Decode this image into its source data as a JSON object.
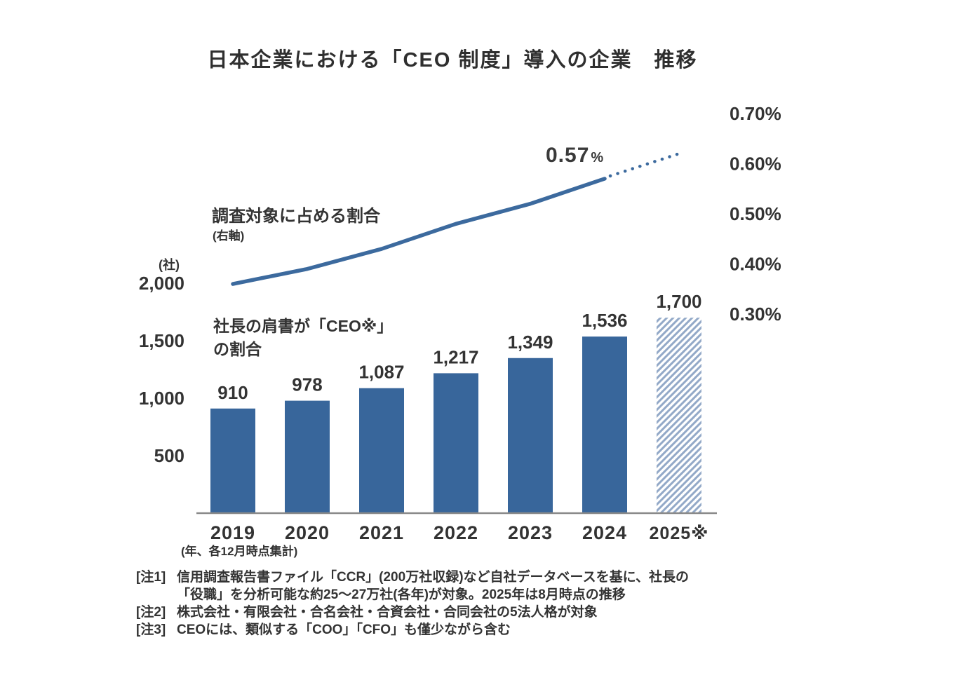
{
  "title": "日本企業における「CEO 制度」導入の企業　推移",
  "colors": {
    "bar": "#38669B",
    "line": "#3C6A9E",
    "hatch_stripe": "#93A9C8",
    "axis": "#8a8a8a",
    "text": "#333333"
  },
  "left_axis": {
    "unit_label": "(社)",
    "ticks": [
      "2,000",
      "1,500",
      "1,000",
      "500"
    ],
    "tick_values": [
      2000,
      1500,
      1000,
      500
    ]
  },
  "right_axis": {
    "ticks": [
      "0.70%",
      "0.60%",
      "0.50%",
      "0.40%",
      "0.30%"
    ],
    "tick_values": [
      0.7,
      0.6,
      0.5,
      0.4,
      0.3
    ]
  },
  "x_axis": {
    "labels": [
      "2019",
      "2020",
      "2021",
      "2022",
      "2023",
      "2024",
      "2025※"
    ],
    "footnote": "(年、各12月時点集計)"
  },
  "annotations": {
    "line_series_label": "調査対象に占める割合",
    "line_series_sublabel": "(右軸)",
    "bar_series_label_line1": "社長の肩書が「CEO※」",
    "bar_series_label_line2": "の割合",
    "line_end_value": "0.57",
    "line_end_percent_sign": "%"
  },
  "chart_data": {
    "type": "bar",
    "title": "日本企業における「CEO 制度」導入の企業　推移",
    "categories": [
      "2019",
      "2020",
      "2021",
      "2022",
      "2023",
      "2024",
      "2025※"
    ],
    "series": [
      {
        "name": "社長の肩書が「CEO※」の割合",
        "type": "bar",
        "axis": "left",
        "values": [
          910,
          978,
          1087,
          1217,
          1349,
          1536,
          1700
        ],
        "labels": [
          "910",
          "978",
          "1,087",
          "1,217",
          "1,349",
          "1,536",
          "1,700"
        ],
        "last_bar_style": "hatched-projection"
      },
      {
        "name": "調査対象に占める割合(右軸)",
        "type": "line",
        "axis": "right",
        "values_percent": [
          0.36,
          0.39,
          0.43,
          0.48,
          0.52,
          0.57
        ],
        "projection_percent": [
          0.57,
          0.62
        ],
        "labeled_point": {
          "category": "2024",
          "label": "0.57%"
        }
      }
    ],
    "left_axis_range": [
      0,
      2000
    ],
    "right_axis_range": [
      0.3,
      0.7
    ],
    "left_axis_unit": "社",
    "grid": false,
    "legend_position": "inline-annotations"
  },
  "notes": [
    {
      "tag": "[注1]",
      "lines": [
        "信用調査報告書ファイル「CCR」(200万社収録)など自社データベースを基に、社長の",
        "「役職」を分析可能な約25〜27万社(各年)が対象。2025年は8月時点の推移"
      ]
    },
    {
      "tag": "[注2]",
      "lines": [
        "株式会社・有限会社・合名会社・合資会社・合同会社の5法人格が対象"
      ]
    },
    {
      "tag": "[注3]",
      "lines": [
        "CEOには、類似する「COO」「CFO」も僅少ながら含む"
      ]
    }
  ]
}
